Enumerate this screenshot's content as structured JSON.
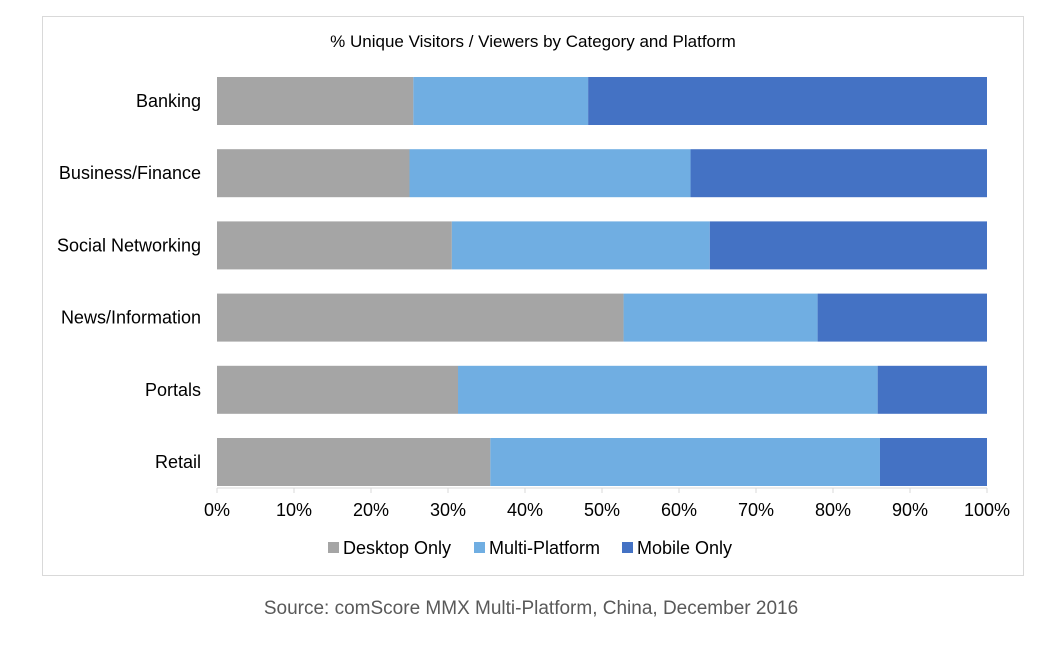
{
  "chart_data": {
    "type": "bar",
    "orientation": "horizontal",
    "stacked": "100%",
    "title": "% Unique Visitors / Viewers by Category and Platform",
    "categories": [
      "Banking",
      "Business/Finance",
      "Social Networking",
      "News/Information",
      "Portals",
      "Retail"
    ],
    "series": [
      {
        "name": "Desktop Only",
        "color": "#a5a5a5",
        "values": [
          25.5,
          25,
          30.5,
          52.8,
          31.3,
          35.5
        ]
      },
      {
        "name": "Multi-Platform",
        "color": "#70aee2",
        "values": [
          22.7,
          36.5,
          33.5,
          25.2,
          54.5,
          50.6
        ]
      },
      {
        "name": "Mobile Only",
        "color": "#4472c4",
        "values": [
          51.8,
          38.5,
          36,
          22,
          14.2,
          13.9
        ]
      }
    ],
    "x_ticks": [
      "0%",
      "10%",
      "20%",
      "30%",
      "40%",
      "50%",
      "60%",
      "70%",
      "80%",
      "90%",
      "100%"
    ],
    "xlim": [
      0,
      100
    ],
    "grid": false,
    "legend_position": "bottom"
  },
  "source_note": "Source: comScore MMX Multi-Platform, China, December 2016"
}
